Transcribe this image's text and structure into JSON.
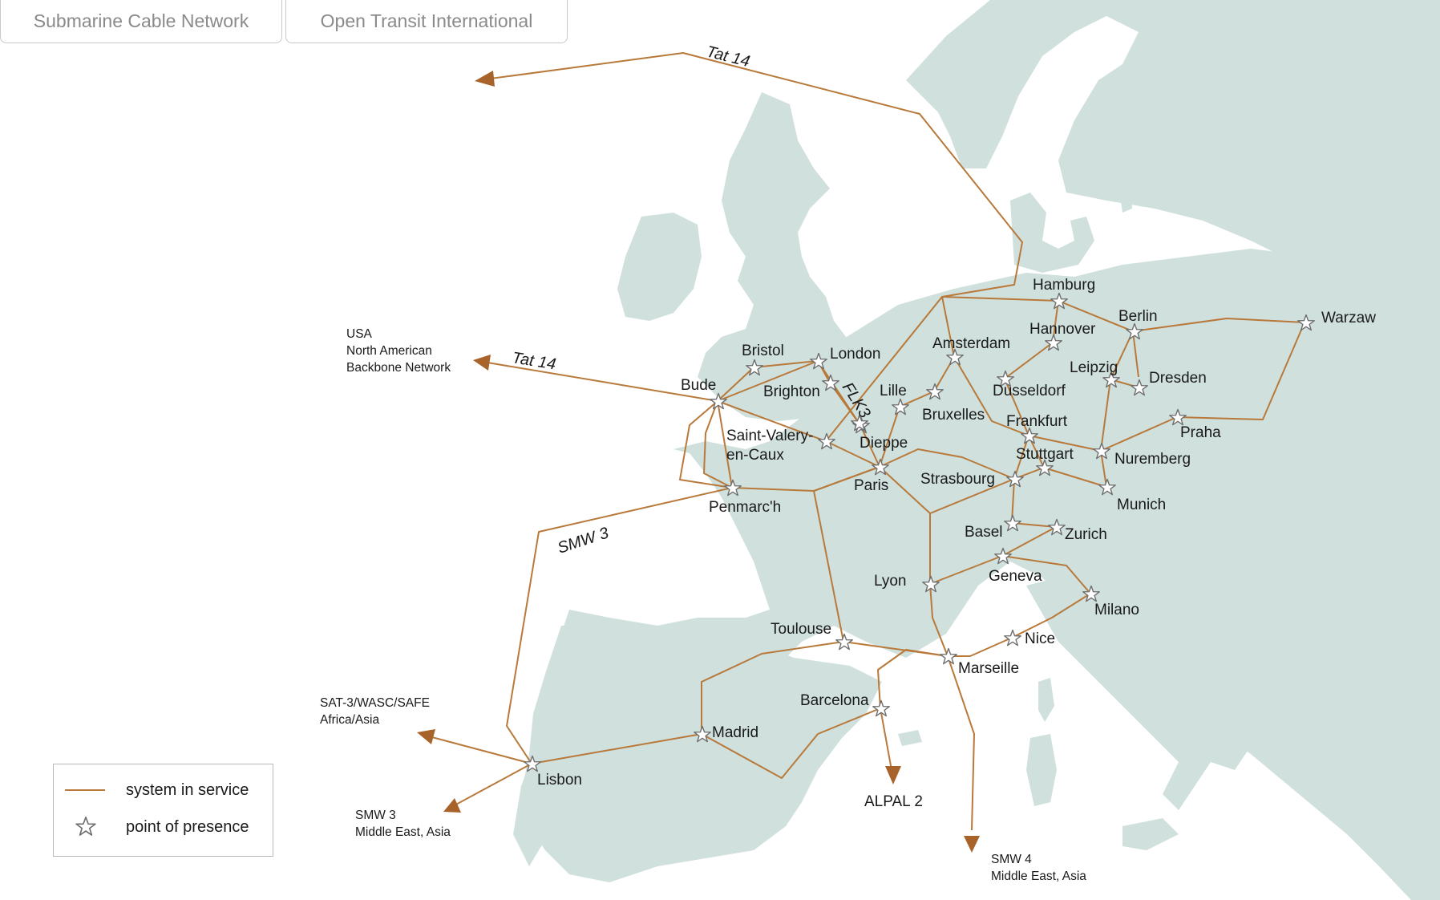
{
  "tabs": [
    {
      "label": "Submarine Cable Network"
    },
    {
      "label": "Open Transit International"
    }
  ],
  "colors": {
    "land": "#cfe0dd",
    "route": "#b8793a",
    "arrow": "#a8632a",
    "star_fill": "#ffffff",
    "star_stroke": "#6e6e6e"
  },
  "cities": [
    {
      "name": "Hamburg"
    },
    {
      "name": "Hannover"
    },
    {
      "name": "Berlin"
    },
    {
      "name": "Warzaw"
    },
    {
      "name": "Amsterdam"
    },
    {
      "name": "Dusseldorf"
    },
    {
      "name": "Leipzig"
    },
    {
      "name": "Dresden"
    },
    {
      "name": "Frankfurt"
    },
    {
      "name": "Praha"
    },
    {
      "name": "Stuttgart"
    },
    {
      "name": "Nuremberg"
    },
    {
      "name": "Munich"
    },
    {
      "name": "Strasbourg"
    },
    {
      "name": "Basel"
    },
    {
      "name": "Zurich"
    },
    {
      "name": "Geneva"
    },
    {
      "name": "Lyon"
    },
    {
      "name": "Milano"
    },
    {
      "name": "Nice"
    },
    {
      "name": "Marseille"
    },
    {
      "name": "Toulouse"
    },
    {
      "name": "Barcelona"
    },
    {
      "name": "Madrid"
    },
    {
      "name": "Lisbon"
    },
    {
      "name": "Paris"
    },
    {
      "name": "Dieppe"
    },
    {
      "name": "Lille"
    },
    {
      "name": "Bruxelles"
    },
    {
      "name": "London"
    },
    {
      "name": "Bristol"
    },
    {
      "name": "Brighton"
    },
    {
      "name": "Bude"
    },
    {
      "name": "Penmarc'h"
    }
  ],
  "city_multiline": {
    "saint_valery_1": "Saint-Valery-",
    "saint_valery_2": "en-Caux"
  },
  "cable_labels": {
    "tat14_north": "Tat 14",
    "tat14_usa": "Tat 14",
    "smw3": "SMW 3",
    "fuk3": "FLK3"
  },
  "destinations": {
    "usa_1": "USA",
    "usa_2": "North American",
    "usa_3": "Backbone Network",
    "sat3_1": "SAT-3/WASC/SAFE",
    "sat3_2": "Africa/Asia",
    "smw3_1": "SMW 3",
    "smw3_2": "Middle East, Asia",
    "alpal": "ALPAL 2",
    "smw4_1": "SMW 4",
    "smw4_2": "Middle East, Asia"
  },
  "legend": {
    "line_label": "system in service",
    "star_label": "point of presence"
  }
}
